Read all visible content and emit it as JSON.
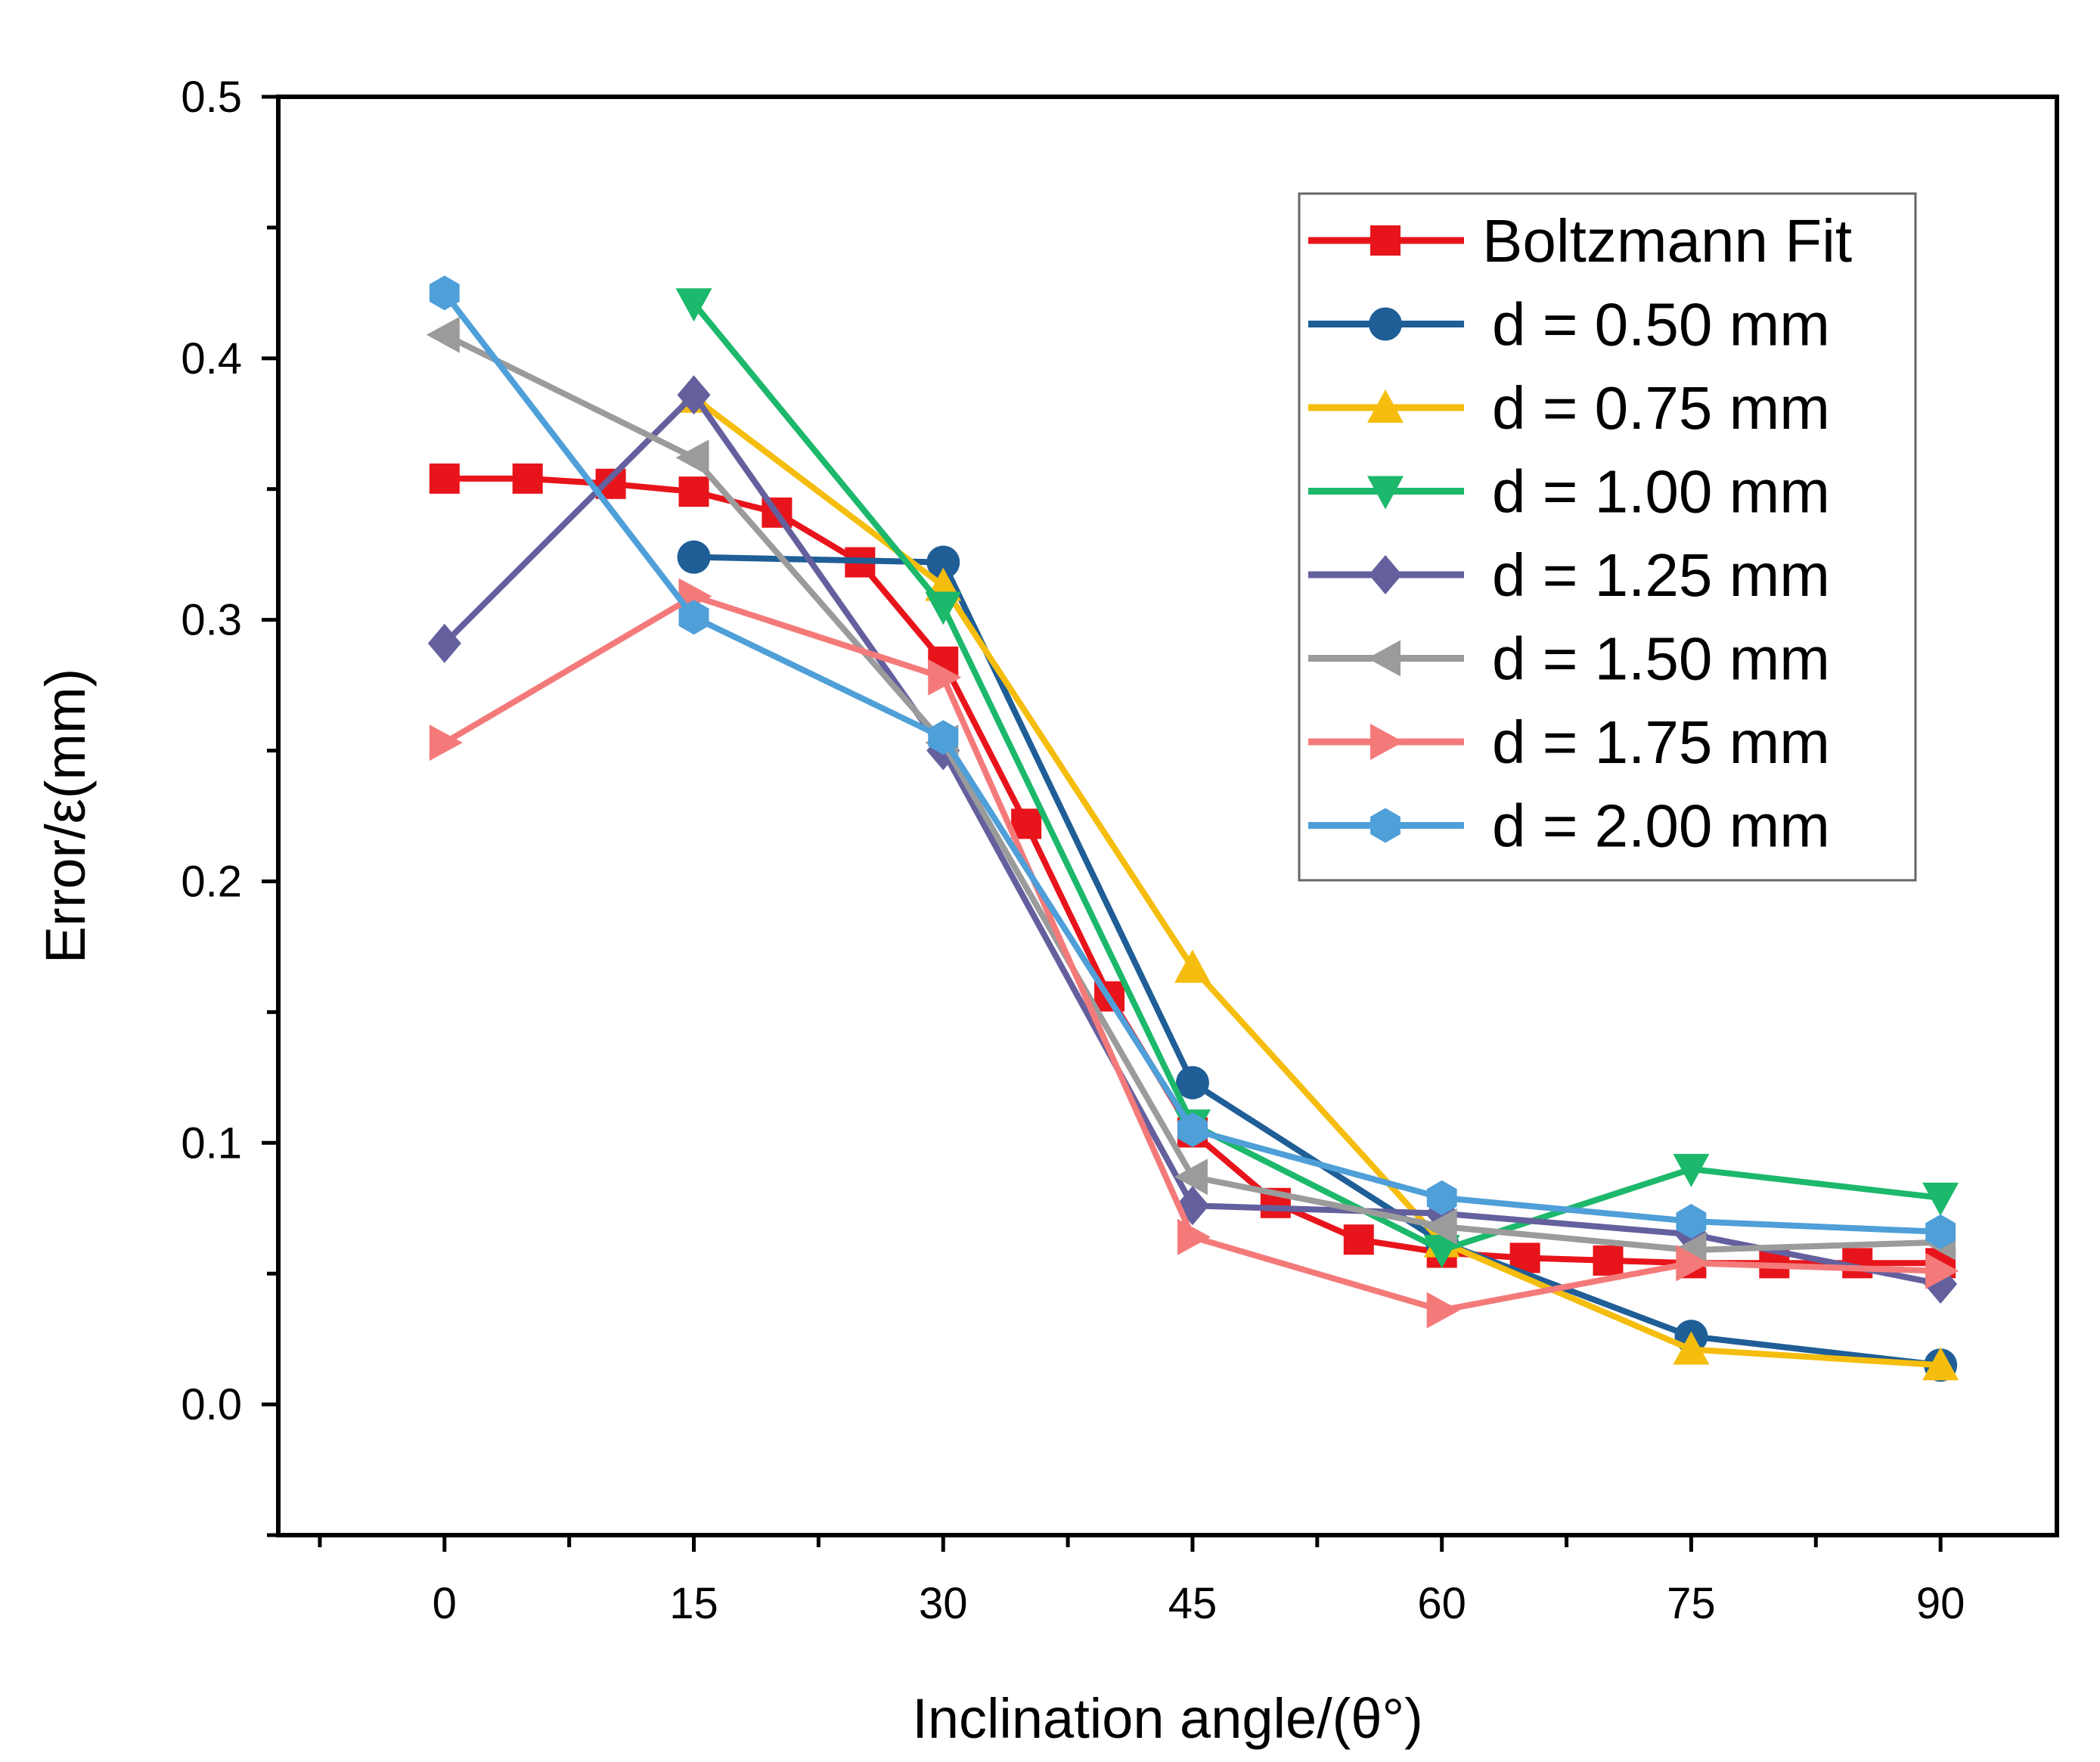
{
  "chart_data": {
    "type": "line",
    "xlabel": "Inclination angle/(θ°)",
    "ylabel": "Error/ε(mm)",
    "xlim": [
      -10,
      97
    ],
    "ylim": [
      -0.05,
      0.5
    ],
    "xticks": [
      0,
      15,
      30,
      45,
      60,
      75,
      90
    ],
    "xtick_labels": [
      "0",
      "15",
      "30",
      "45",
      "60",
      "75",
      "90"
    ],
    "yticks": [
      0.0,
      0.1,
      0.2,
      0.3,
      0.4,
      0.5
    ],
    "ytick_labels": [
      "0.0",
      "0.1",
      "0.2",
      "0.3",
      "0.4",
      "0.5"
    ],
    "legend_position": "top-right",
    "series": [
      {
        "name": "Boltzmann Fit",
        "color": "#e8141b",
        "marker": "square",
        "x": [
          0,
          5,
          10,
          15,
          20,
          25,
          30,
          35,
          40,
          45,
          50,
          55,
          60,
          65,
          70,
          75,
          80,
          85,
          90
        ],
        "y": [
          0.354,
          0.354,
          0.352,
          0.349,
          0.341,
          0.322,
          0.284,
          0.222,
          0.156,
          0.104,
          0.077,
          0.063,
          0.058,
          0.056,
          0.055,
          0.054,
          0.054,
          0.054,
          0.054
        ]
      },
      {
        "name": "d = 0.50 mm",
        "color": "#1f5e96",
        "marker": "circle",
        "x": [
          15,
          30,
          45,
          60,
          75,
          90
        ],
        "y": [
          0.324,
          0.322,
          0.123,
          0.062,
          0.026,
          0.015
        ]
      },
      {
        "name": "d = 0.75 mm",
        "color": "#f5bd0d",
        "marker": "triangle-up",
        "x": [
          15,
          30,
          45,
          60,
          75,
          90
        ],
        "y": [
          0.385,
          0.313,
          0.167,
          0.062,
          0.021,
          0.015
        ]
      },
      {
        "name": "d = 1.00 mm",
        "color": "#1cb86b",
        "marker": "triangle-down",
        "x": [
          15,
          30,
          45,
          60,
          75,
          90
        ],
        "y": [
          0.421,
          0.305,
          0.107,
          0.059,
          0.09,
          0.079
        ]
      },
      {
        "name": "d = 1.25 mm",
        "color": "#64609e",
        "marker": "diamond",
        "x": [
          0,
          15,
          30,
          45,
          60,
          75,
          90
        ],
        "y": [
          0.291,
          0.386,
          0.25,
          0.076,
          0.073,
          0.065,
          0.046
        ]
      },
      {
        "name": "d = 1.50 mm",
        "color": "#9b9b9b",
        "marker": "triangle-left",
        "x": [
          0,
          15,
          30,
          45,
          60,
          75,
          90
        ],
        "y": [
          0.409,
          0.362,
          0.253,
          0.087,
          0.068,
          0.059,
          0.062
        ]
      },
      {
        "name": "d = 1.75 mm",
        "color": "#f47a7a",
        "marker": "triangle-right",
        "x": [
          0,
          15,
          30,
          45,
          60,
          75,
          90
        ],
        "y": [
          0.253,
          0.309,
          0.278,
          0.064,
          0.036,
          0.054,
          0.051
        ]
      },
      {
        "name": "d = 2.00 mm",
        "color": "#4f9fd8",
        "marker": "hexagon",
        "x": [
          0,
          15,
          30,
          45,
          60,
          75,
          90
        ],
        "y": [
          0.425,
          0.301,
          0.255,
          0.105,
          0.079,
          0.07,
          0.066
        ]
      }
    ]
  }
}
